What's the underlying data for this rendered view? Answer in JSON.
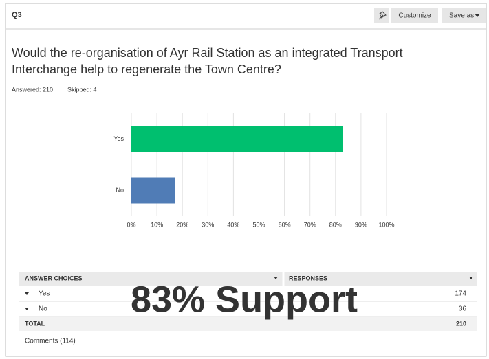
{
  "header": {
    "question_number": "Q3",
    "buttons": [
      "Customize",
      "Save as"
    ]
  },
  "question_lines": [
    "Would the re-organisation of Ayr Rail Station as an integrated Transport",
    "Interchange help to regenerate the Town Centre?"
  ],
  "stats": [
    "Answered: 210",
    "Skipped: 4"
  ],
  "chart_data": {
    "type": "bar",
    "orientation": "horizontal",
    "categories": [
      "Yes",
      "No"
    ],
    "values": [
      82.86,
      17.14
    ],
    "colors": [
      "#00bf6f",
      "#507cb6"
    ],
    "xlim": [
      0,
      100
    ],
    "xticks": [
      {
        "value": 0,
        "label": "0%"
      },
      {
        "value": 10,
        "label": "10%"
      },
      {
        "value": 20,
        "label": "20%"
      },
      {
        "value": 30,
        "label": "30%"
      },
      {
        "value": 40,
        "label": "40%"
      },
      {
        "value": 50,
        "label": "50%"
      },
      {
        "value": 60,
        "label": "60%"
      },
      {
        "value": 70,
        "label": "70%"
      },
      {
        "value": 80,
        "label": "80%"
      },
      {
        "value": 90,
        "label": "90%"
      },
      {
        "value": 100,
        "label": "100%"
      }
    ],
    "grid": true
  },
  "table": {
    "headers": [
      "ANSWER CHOICES",
      "RESPONSES"
    ],
    "rows": [
      [
        "Yes",
        174
      ],
      [
        "No",
        36
      ]
    ],
    "total": [
      "TOTAL",
      210
    ]
  },
  "comments": "Comments (114)",
  "annotation": "83% Support"
}
